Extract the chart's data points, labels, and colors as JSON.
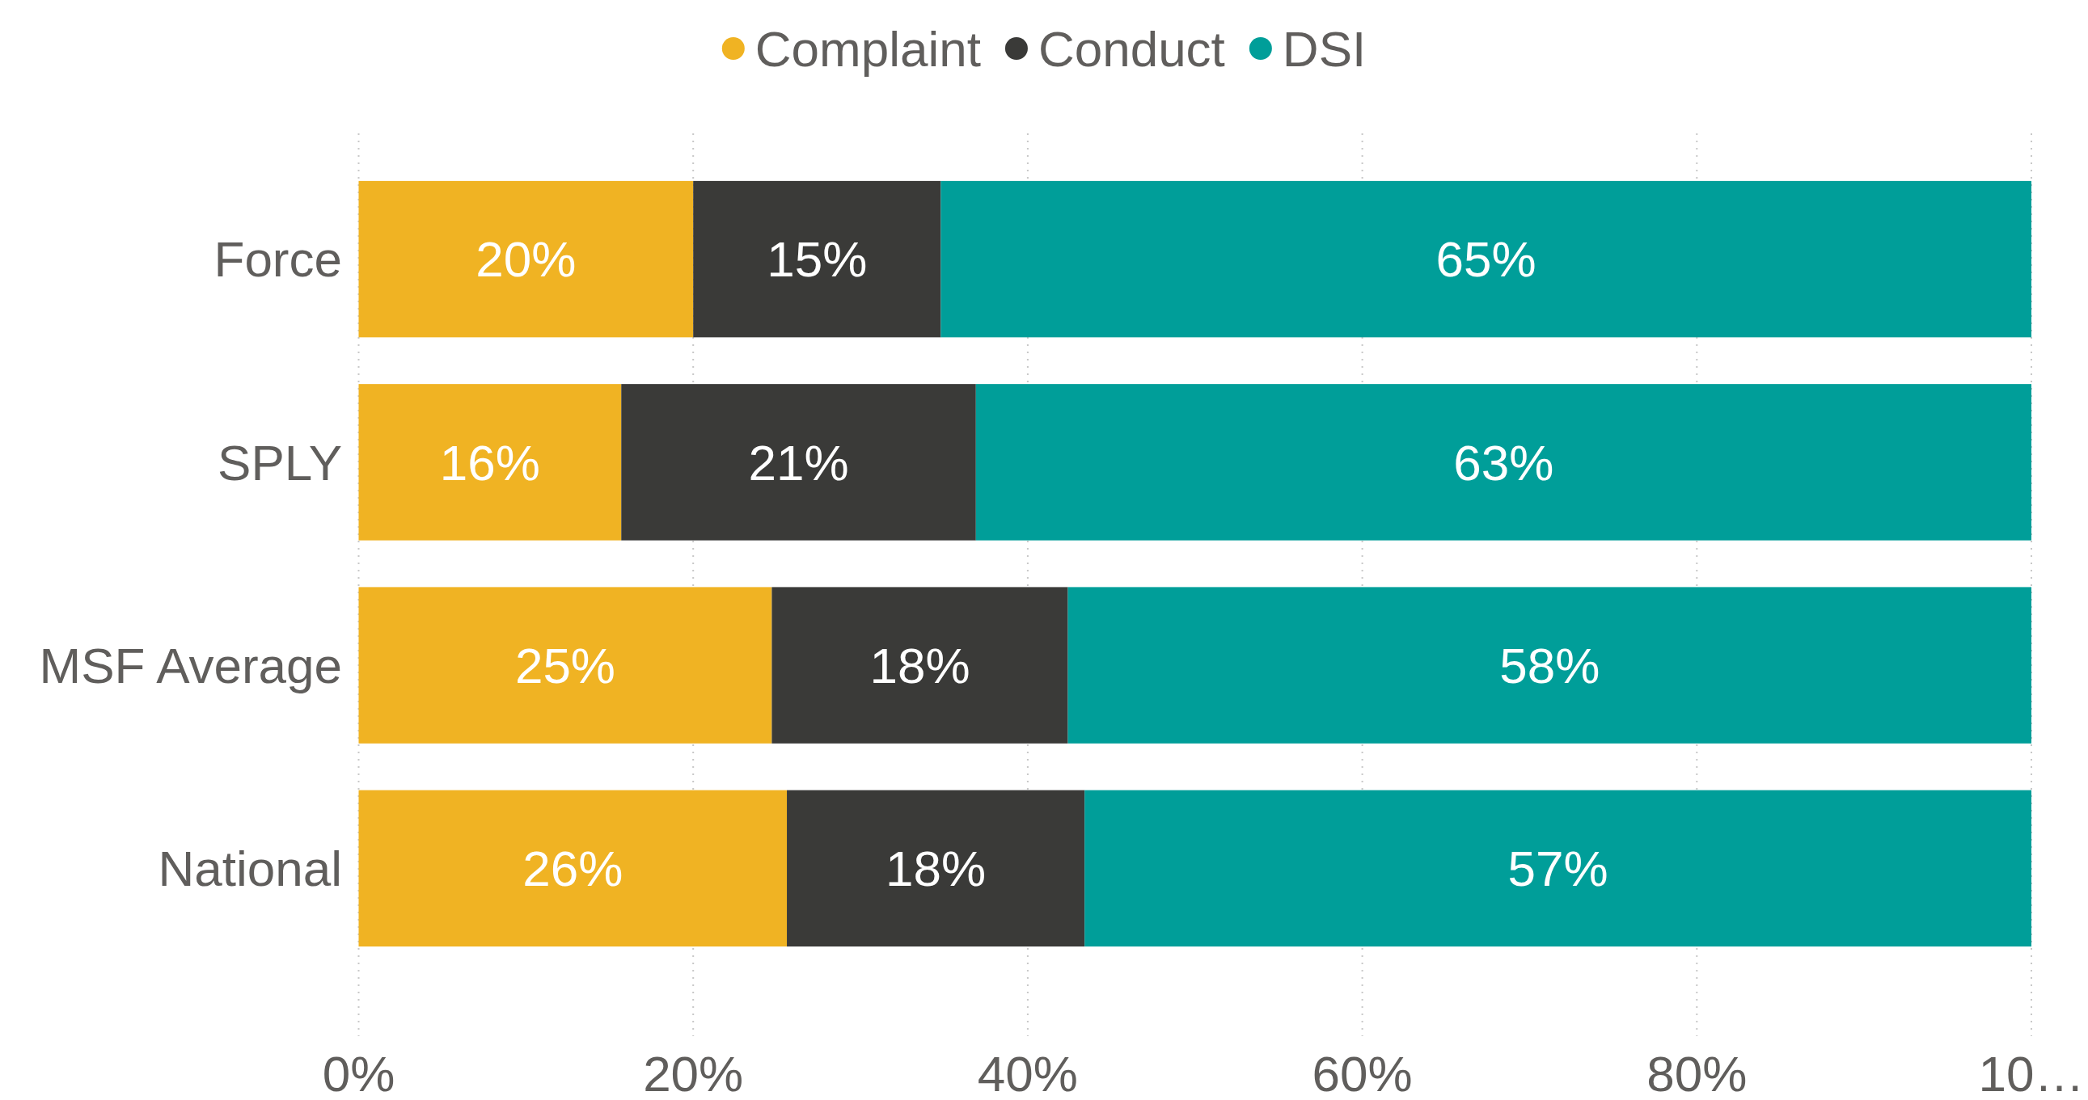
{
  "chart_data": {
    "type": "bar",
    "orientation": "horizontal",
    "stacked": true,
    "categories": [
      "Force",
      "SPLY",
      "MSF Average",
      "National"
    ],
    "series": [
      {
        "name": "Complaint",
        "color": "#f0b323",
        "values": [
          20.0,
          15.7,
          24.7,
          25.6
        ],
        "value_labels": [
          "20%",
          "16%",
          "25%",
          "26%"
        ]
      },
      {
        "name": "Conduct",
        "color": "#3a3a38",
        "values": [
          14.8,
          21.2,
          17.7,
          17.8
        ],
        "value_labels": [
          "15%",
          "21%",
          "18%",
          "18%"
        ]
      },
      {
        "name": "DSI",
        "color": "#009e99",
        "values": [
          65.2,
          63.1,
          57.6,
          56.6
        ],
        "value_labels": [
          "65%",
          "63%",
          "58%",
          "57%"
        ]
      }
    ],
    "xlim": [
      0,
      100
    ],
    "xticks": [
      {
        "value": 0,
        "label": "0%"
      },
      {
        "value": 20,
        "label": "20%"
      },
      {
        "value": 40,
        "label": "40%"
      },
      {
        "value": 60,
        "label": "60%"
      },
      {
        "value": 80,
        "label": "80%"
      },
      {
        "value": 100,
        "label": "10…"
      }
    ],
    "grid": "x",
    "legend": "top"
  }
}
